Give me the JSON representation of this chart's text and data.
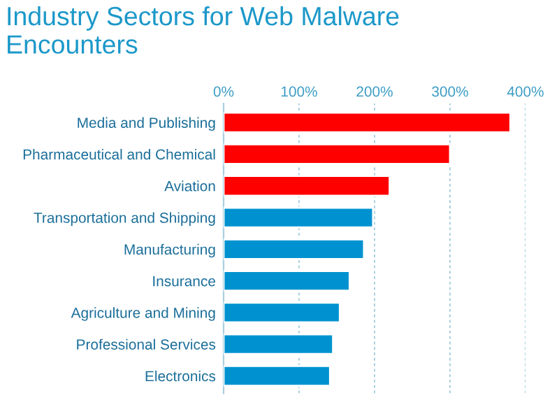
{
  "chart_data": {
    "type": "bar",
    "orientation": "horizontal",
    "title": "Industry Sectors for Web Malware\nEncounters",
    "categories": [
      "Media and Publishing",
      "Pharmaceutical and Chemical",
      "Aviation",
      "Transportation and Shipping",
      "Manufacturing",
      "Insurance",
      "Agriculture and Mining",
      "Professional Services",
      "Electronics"
    ],
    "values": [
      380,
      300,
      220,
      198,
      186,
      167,
      154,
      145,
      141
    ],
    "colors": [
      "#ff0000",
      "#ff0000",
      "#ff0000",
      "#0092d0",
      "#0092d0",
      "#0092d0",
      "#0092d0",
      "#0092d0",
      "#0092d0"
    ],
    "xlim": [
      0,
      400
    ],
    "xticks": [
      {
        "value": 0,
        "label": "0%"
      },
      {
        "value": 100,
        "label": "100%"
      },
      {
        "value": 200,
        "label": "200%"
      },
      {
        "value": 300,
        "label": "300%"
      },
      {
        "value": 400,
        "label": "400%"
      }
    ],
    "grid": "x",
    "legend": false
  }
}
